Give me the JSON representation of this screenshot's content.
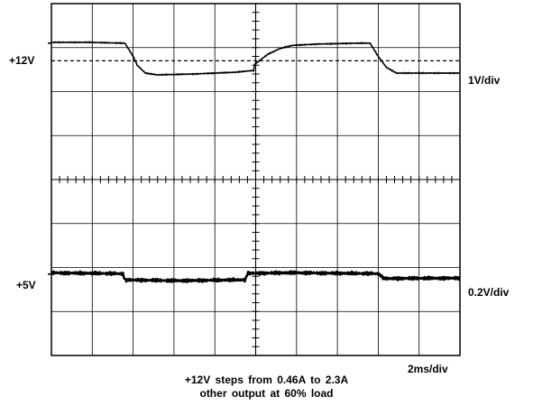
{
  "chart_data": {
    "type": "line",
    "title": "",
    "grid": true,
    "divisions": {
      "x": 10,
      "y": 8
    },
    "x_scale": "2ms/div",
    "time_unit": "ms",
    "x_range_ms": [
      0,
      20
    ],
    "series": [
      {
        "name": "+12V",
        "scale": "1V/div",
        "reference_label": "+12V",
        "reference_level_div": 7.1,
        "points": [
          [
            0,
            7.12
          ],
          [
            1.8,
            7.12
          ],
          [
            3.6,
            7.1
          ],
          [
            4.0,
            6.8
          ],
          [
            4.2,
            6.6
          ],
          [
            4.6,
            6.42
          ],
          [
            5.2,
            6.38
          ],
          [
            7.0,
            6.4
          ],
          [
            9.0,
            6.44
          ],
          [
            9.9,
            6.48
          ],
          [
            9.95,
            6.62
          ],
          [
            10.6,
            6.85
          ],
          [
            11.2,
            6.98
          ],
          [
            11.8,
            7.05
          ],
          [
            13.0,
            7.08
          ],
          [
            15.0,
            7.1
          ],
          [
            15.6,
            7.1
          ],
          [
            16.0,
            6.8
          ],
          [
            16.4,
            6.55
          ],
          [
            16.9,
            6.42
          ],
          [
            20.0,
            6.42
          ]
        ]
      },
      {
        "name": "+5V",
        "scale": "0.2V/div",
        "reference_label": "+5V",
        "reference_level_div": 1.85,
        "points": [
          [
            0,
            1.88
          ],
          [
            3.5,
            1.86
          ],
          [
            3.6,
            1.72
          ],
          [
            6.0,
            1.7
          ],
          [
            9.5,
            1.72
          ],
          [
            9.6,
            1.87
          ],
          [
            12.0,
            1.88
          ],
          [
            16.0,
            1.86
          ],
          [
            16.3,
            1.75
          ],
          [
            20.0,
            1.76
          ]
        ]
      }
    ],
    "dashed_reference": {
      "level_div": 6.7
    },
    "annotations": [
      "+12V steps from 0.46A to 2.3A",
      "other output at 60% load"
    ]
  },
  "labels": {
    "ch1_level": "+12V",
    "ch1_scale": "1V/div",
    "ch2_level": "+5V",
    "ch2_scale": "0.2V/div",
    "time_scale": "2ms/div"
  },
  "caption": {
    "line1": "+12V steps from 0.46A to 2.3A",
    "line2": "other output at 60% load"
  }
}
